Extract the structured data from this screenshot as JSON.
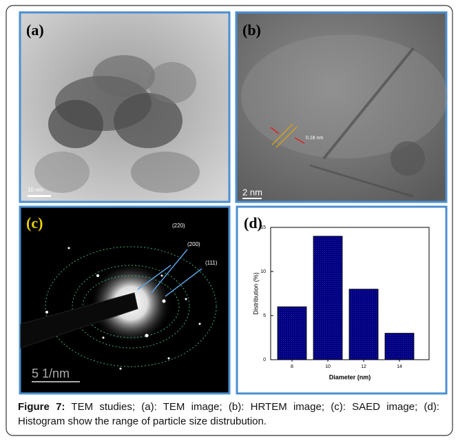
{
  "panels": {
    "a": {
      "label": "(a)",
      "scale": "10 nm"
    },
    "b": {
      "label": "(b)",
      "scale": "2 nm",
      "spacing": "0.18 nm"
    },
    "c": {
      "label": "(c)",
      "scale": "5 1/nm",
      "rings": [
        "(220)",
        "(200)",
        "(111)"
      ]
    }
  },
  "chart_data": {
    "type": "bar",
    "label": "(d)",
    "x_label": "Diameter (nm)",
    "y_label": "Distribution (%)",
    "categories": [
      "8",
      "10",
      "12",
      "14"
    ],
    "values": [
      6,
      14,
      8,
      3
    ],
    "color": "#000080",
    "ylim": [
      0,
      15
    ],
    "yticks": [
      0,
      5,
      10,
      15
    ]
  },
  "caption": {
    "label": "Figure 7:",
    "text": "TEM studies; (a): TEM image; (b): HRTEM image; (c): SAED image; (d): Histogram show the range of particle size distrubution."
  }
}
